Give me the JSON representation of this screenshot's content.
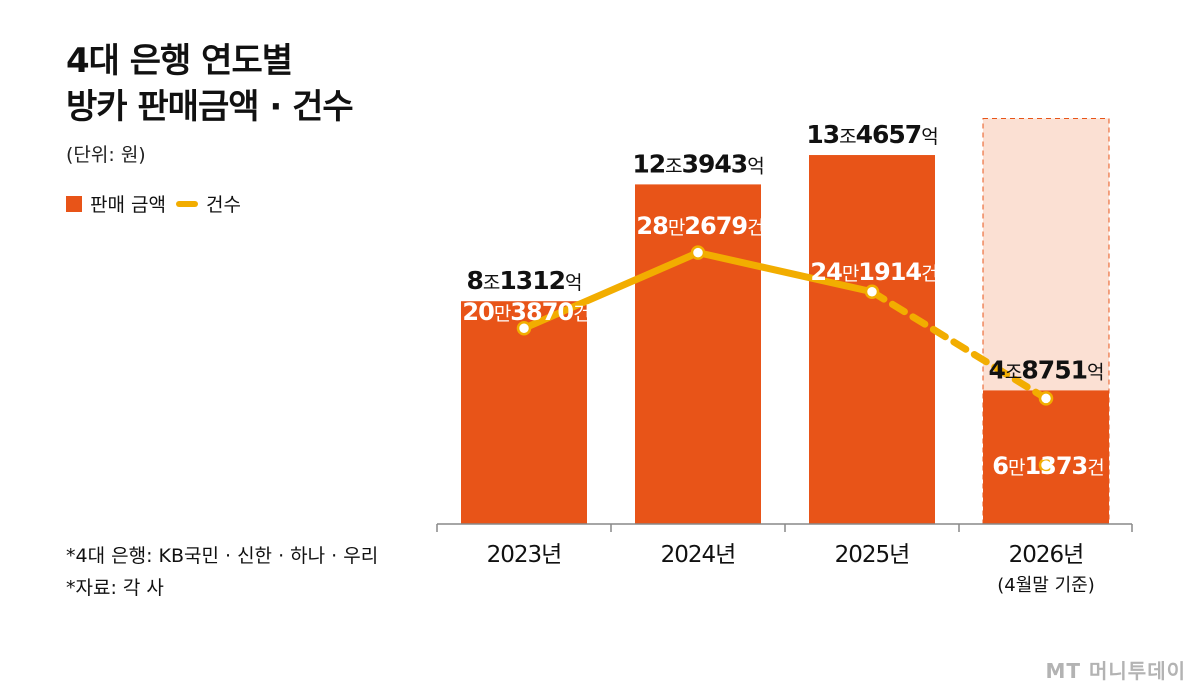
{
  "title_lines": [
    "4대 은행 연도별",
    "방카 판매금액 · 건수"
  ],
  "unit_label": "(단위: 원)",
  "legend": {
    "bar_label": "판매 금액",
    "line_label": "건수"
  },
  "notes": [
    "*4대 은행: KB국민 · 신한 · 하나 · 우리",
    "*자료: 각 사"
  ],
  "watermark": "MT 머니투데이",
  "colors": {
    "bar": "#e85418",
    "bar_projection": "#fbe0d3",
    "line": "#f2ad00",
    "axis": "#888888"
  },
  "chart_data": {
    "type": "bar",
    "categories": [
      "2023년",
      "2024년",
      "2025년",
      "2026년"
    ],
    "category_notes": [
      "",
      "",
      "",
      "(4월말 기준)"
    ],
    "ylim": [
      0,
      16
    ],
    "series": [
      {
        "values": [
          8.1312,
          12.3943,
          13.4657,
          4.8751
        ],
        "labels": [
          {
            "num1": "8",
            "unit1": "조",
            "num2": "1312",
            "unit2": "억"
          },
          {
            "num1": "12",
            "unit1": "조",
            "num2": "3943",
            "unit2": "억"
          },
          {
            "num1": "13",
            "unit1": "조",
            "num2": "4657",
            "unit2": "억"
          },
          {
            "num1": "4",
            "unit1": "조",
            "num2": "8751",
            "unit2": "억"
          }
        ],
        "projection_value": 14.8
      },
      {
        "type": "line",
        "values": [
          203870,
          282679,
          241914,
          61373
        ],
        "labels": [
          {
            "num1": "20",
            "unit1": "만",
            "num2": "3870",
            "unit2": "건"
          },
          {
            "num1": "28",
            "unit1": "만",
            "num2": "2679",
            "unit2": "건"
          },
          {
            "num1": "24",
            "unit1": "만",
            "num2": "1914",
            "unit2": "건"
          },
          {
            "num1": "6",
            "unit1": "만",
            "num2": "1373",
            "unit2": "건"
          }
        ],
        "last_point_shown": "separately"
      }
    ]
  }
}
